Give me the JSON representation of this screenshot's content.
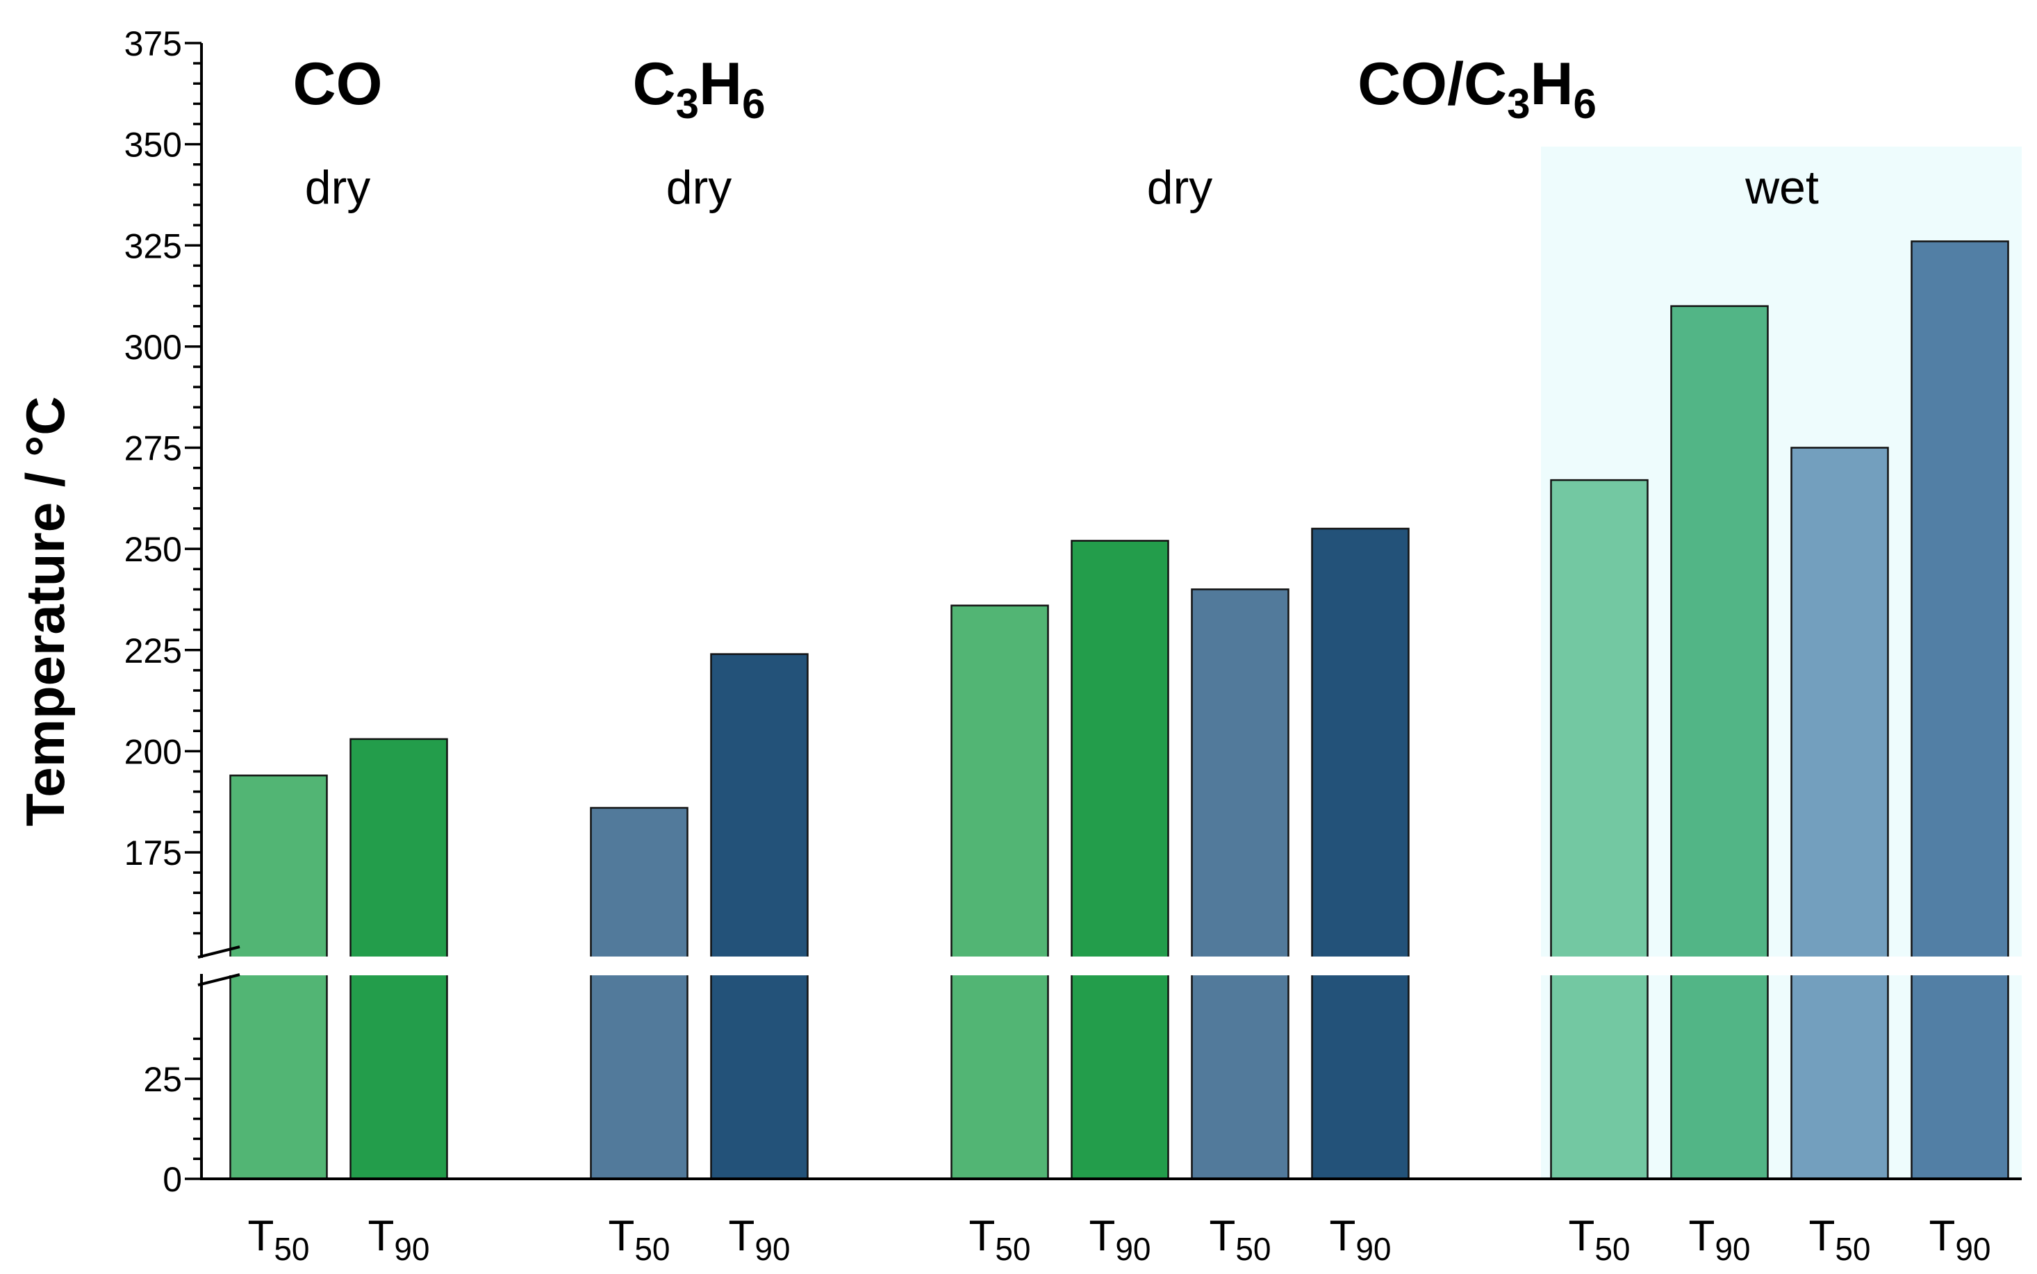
{
  "chart_data": {
    "type": "bar",
    "ylabel": "Temperature / °C",
    "ylim": [
      0,
      375
    ],
    "axis_break": [
      37,
      150
    ],
    "y_ticks_upper": [
      175,
      200,
      225,
      250,
      275,
      300,
      325,
      350,
      375
    ],
    "y_ticks_lower": [
      0,
      25
    ],
    "group_titles": [
      {
        "main": "CO",
        "sub": "",
        "tail": ""
      },
      {
        "main": "C",
        "sub": "3",
        "mid": "H",
        "sub2": "6"
      },
      {
        "main": "CO/C",
        "sub": "3",
        "mid": "H",
        "sub2": "6"
      }
    ],
    "conditions": [
      "dry",
      "dry",
      "dry",
      "wet"
    ],
    "highlight_color": "#eefcfd",
    "bars": [
      {
        "gas": "CO",
        "condition": "dry",
        "metric": "T",
        "sub": "50",
        "value": 194,
        "color": "#52b574"
      },
      {
        "gas": "CO",
        "condition": "dry",
        "metric": "T",
        "sub": "90",
        "value": 203,
        "color": "#239d4b"
      },
      {
        "gas": "C3H6",
        "condition": "dry",
        "metric": "T",
        "sub": "50",
        "value": 186,
        "color": "#527a9b"
      },
      {
        "gas": "C3H6",
        "condition": "dry",
        "metric": "T",
        "sub": "90",
        "value": 224,
        "color": "#235279"
      },
      {
        "gas": "CO/C3H6",
        "condition": "dry",
        "metric": "T",
        "sub": "50",
        "value": 236,
        "color": "#52b574"
      },
      {
        "gas": "CO/C3H6",
        "condition": "dry",
        "metric": "T",
        "sub": "90",
        "value": 252,
        "color": "#239d4b"
      },
      {
        "gas": "CO/C3H6",
        "condition": "dry",
        "metric": "T",
        "sub": "50",
        "value": 240,
        "color": "#527a9b"
      },
      {
        "gas": "CO/C3H6",
        "condition": "dry",
        "metric": "T",
        "sub": "90",
        "value": 255,
        "color": "#235279"
      },
      {
        "gas": "CO/C3H6",
        "condition": "wet",
        "metric": "T",
        "sub": "50",
        "value": 267,
        "color": "#73c8a2"
      },
      {
        "gas": "CO/C3H6",
        "condition": "wet",
        "metric": "T",
        "sub": "90",
        "value": 310,
        "color": "#52b586"
      },
      {
        "gas": "CO/C3H6",
        "condition": "wet",
        "metric": "T",
        "sub": "50",
        "value": 275,
        "color": "#739fbe"
      },
      {
        "gas": "CO/C3H6",
        "condition": "wet",
        "metric": "T",
        "sub": "90",
        "value": 326,
        "color": "#527fa5"
      }
    ]
  }
}
